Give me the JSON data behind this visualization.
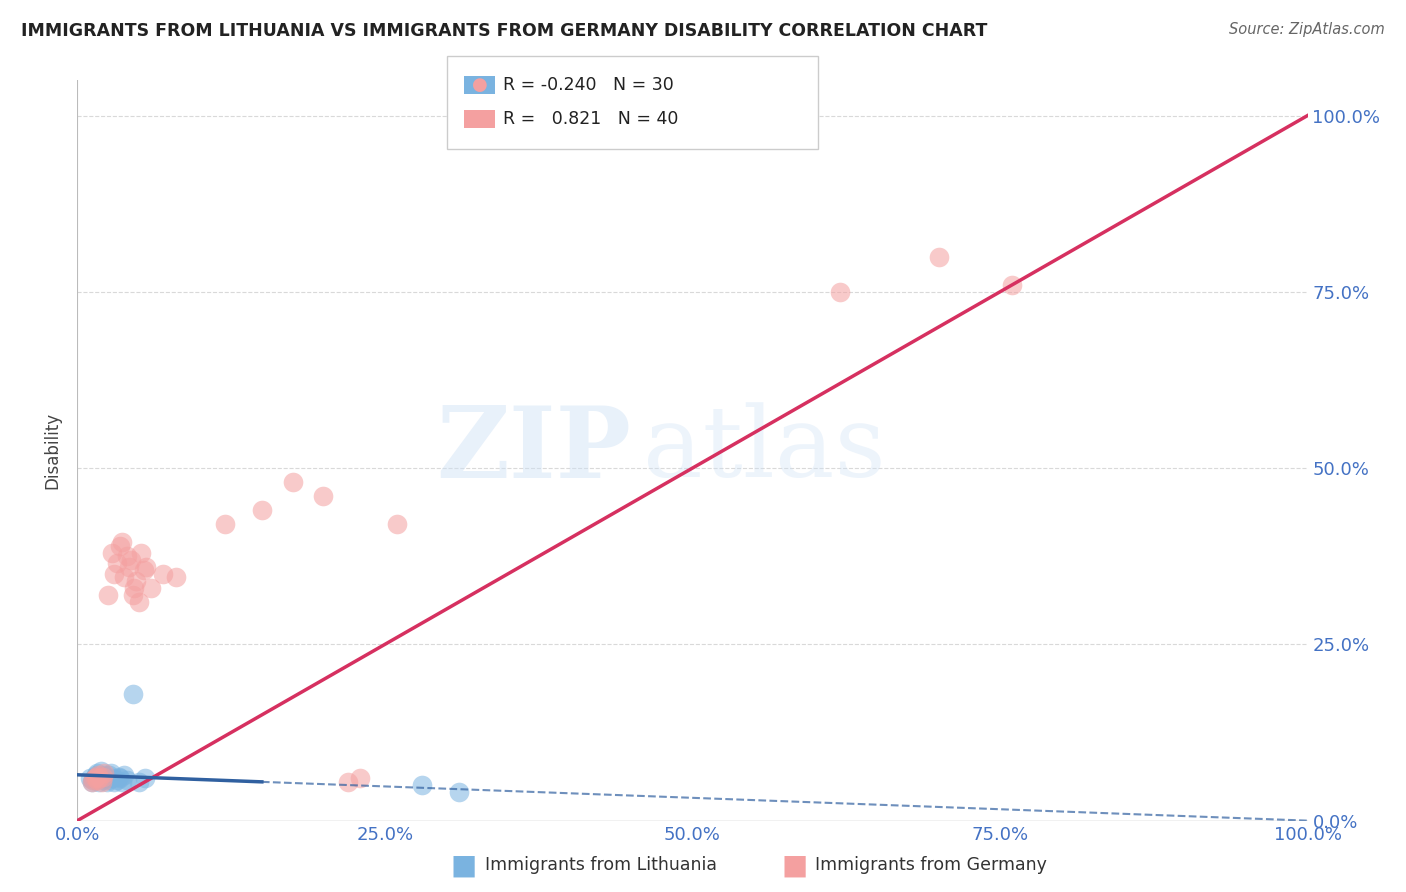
{
  "title": "IMMIGRANTS FROM LITHUANIA VS IMMIGRANTS FROM GERMANY DISABILITY CORRELATION CHART",
  "source": "Source: ZipAtlas.com",
  "ylabel": "Disability",
  "watermark": "ZIPatlas",
  "legend_entries": [
    "Immigrants from Lithuania",
    "Immigrants from Germany"
  ],
  "R_lithuania": -0.24,
  "N_lithuania": 30,
  "R_germany": 0.821,
  "N_germany": 40,
  "blue_color": "#7ab3e0",
  "pink_color": "#f4a0a0",
  "blue_line_color": "#3060a0",
  "pink_line_color": "#d63060",
  "background_color": "#ffffff",
  "grid_color": "#d0d0d0",
  "lithuania_points": [
    [
      0.01,
      0.06
    ],
    [
      0.012,
      0.055
    ],
    [
      0.013,
      0.058
    ],
    [
      0.014,
      0.062
    ],
    [
      0.015,
      0.065
    ],
    [
      0.016,
      0.068
    ],
    [
      0.017,
      0.06
    ],
    [
      0.018,
      0.055
    ],
    [
      0.019,
      0.07
    ],
    [
      0.02,
      0.058
    ],
    [
      0.021,
      0.062
    ],
    [
      0.022,
      0.065
    ],
    [
      0.023,
      0.06
    ],
    [
      0.024,
      0.055
    ],
    [
      0.025,
      0.058
    ],
    [
      0.026,
      0.065
    ],
    [
      0.027,
      0.068
    ],
    [
      0.028,
      0.06
    ],
    [
      0.03,
      0.055
    ],
    [
      0.032,
      0.058
    ],
    [
      0.034,
      0.062
    ],
    [
      0.035,
      0.06
    ],
    [
      0.036,
      0.055
    ],
    [
      0.038,
      0.065
    ],
    [
      0.04,
      0.058
    ],
    [
      0.045,
      0.18
    ],
    [
      0.05,
      0.055
    ],
    [
      0.055,
      0.06
    ],
    [
      0.28,
      0.05
    ],
    [
      0.31,
      0.04
    ]
  ],
  "germany_points": [
    [
      0.012,
      0.055
    ],
    [
      0.013,
      0.058
    ],
    [
      0.014,
      0.06
    ],
    [
      0.015,
      0.062
    ],
    [
      0.016,
      0.058
    ],
    [
      0.017,
      0.065
    ],
    [
      0.018,
      0.06
    ],
    [
      0.02,
      0.055
    ],
    [
      0.021,
      0.062
    ],
    [
      0.022,
      0.068
    ],
    [
      0.025,
      0.32
    ],
    [
      0.028,
      0.38
    ],
    [
      0.03,
      0.35
    ],
    [
      0.032,
      0.365
    ],
    [
      0.035,
      0.39
    ],
    [
      0.036,
      0.395
    ],
    [
      0.038,
      0.345
    ],
    [
      0.04,
      0.375
    ],
    [
      0.042,
      0.36
    ],
    [
      0.044,
      0.37
    ],
    [
      0.045,
      0.32
    ],
    [
      0.046,
      0.33
    ],
    [
      0.048,
      0.34
    ],
    [
      0.05,
      0.31
    ],
    [
      0.052,
      0.38
    ],
    [
      0.054,
      0.355
    ],
    [
      0.056,
      0.36
    ],
    [
      0.06,
      0.33
    ],
    [
      0.07,
      0.35
    ],
    [
      0.08,
      0.345
    ],
    [
      0.12,
      0.42
    ],
    [
      0.15,
      0.44
    ],
    [
      0.175,
      0.48
    ],
    [
      0.2,
      0.46
    ],
    [
      0.22,
      0.055
    ],
    [
      0.23,
      0.06
    ],
    [
      0.26,
      0.42
    ],
    [
      0.62,
      0.75
    ],
    [
      0.7,
      0.8
    ],
    [
      0.76,
      0.76
    ]
  ],
  "xlim": [
    0.0,
    1.0
  ],
  "ylim": [
    0.0,
    1.05
  ],
  "yticks": [
    0.0,
    0.25,
    0.5,
    0.75,
    1.0
  ],
  "ytick_labels": [
    "0.0%",
    "25.0%",
    "50.0%",
    "75.0%",
    "100.0%"
  ],
  "xticks": [
    0.0,
    0.25,
    0.5,
    0.75,
    1.0
  ],
  "xtick_labels": [
    "0.0%",
    "25.0%",
    "50.0%",
    "75.0%",
    "100.0%"
  ]
}
